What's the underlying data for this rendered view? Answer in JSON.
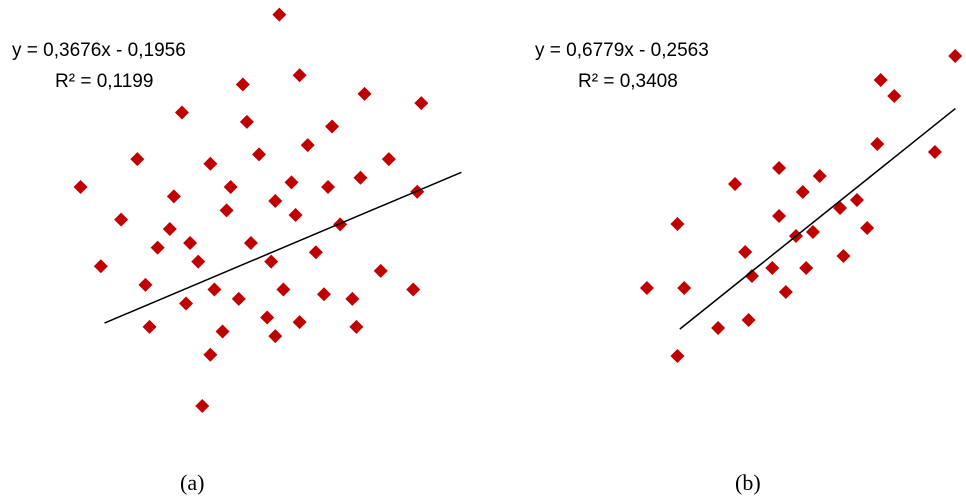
{
  "chart_data": [
    {
      "type": "scatter",
      "caption": "(a)",
      "equation": "y = 0,3676x - 0,1956",
      "r_squared": "R² = 0,1199",
      "trendline": {
        "slope": 0.3676,
        "intercept": -0.1956
      },
      "xlim": [
        -2.6,
        2.7
      ],
      "ylim": [
        -1.9,
        2.5
      ],
      "marker_color": "#c00000",
      "marker_shape": "diamond",
      "line_color": "#000000",
      "grid": false,
      "axes_visible": false,
      "points": [
        [
          -1.85,
          -0.25
        ],
        [
          -1.25,
          -0.9
        ],
        [
          -0.5,
          -1.2
        ],
        [
          0.3,
          -1.0
        ],
        [
          1.3,
          -0.9
        ],
        [
          2.0,
          -0.5
        ],
        [
          -1.4,
          0.9
        ],
        [
          -0.85,
          1.4
        ],
        [
          -0.1,
          1.7
        ],
        [
          0.6,
          1.8
        ],
        [
          1.4,
          1.6
        ],
        [
          2.1,
          1.5
        ],
        [
          0.35,
          2.45
        ],
        [
          -2.1,
          0.6
        ],
        [
          2.05,
          0.55
        ],
        [
          -0.6,
          -1.75
        ],
        [
          0.9,
          -0.55
        ],
        [
          -0.95,
          0.5
        ],
        [
          0.0,
          0.0
        ],
        [
          -0.3,
          0.35
        ],
        [
          0.25,
          -0.2
        ],
        [
          -0.65,
          -0.2
        ],
        [
          0.55,
          0.3
        ],
        [
          0.95,
          0.6
        ],
        [
          -0.15,
          -0.6
        ],
        [
          0.4,
          -0.5
        ],
        [
          -0.5,
          0.85
        ],
        [
          0.7,
          1.05
        ],
        [
          1.1,
          0.2
        ],
        [
          -0.8,
          -0.65
        ],
        [
          -1.15,
          -0.05
        ],
        [
          1.35,
          0.7
        ],
        [
          -0.35,
          -0.95
        ],
        [
          0.1,
          0.95
        ],
        [
          0.8,
          -0.1
        ],
        [
          -1.0,
          0.15
        ],
        [
          0.5,
          0.65
        ],
        [
          1.6,
          -0.3
        ],
        [
          -1.6,
          0.25
        ],
        [
          0.2,
          -0.8
        ],
        [
          -0.25,
          0.6
        ],
        [
          0.6,
          -0.85
        ],
        [
          -0.45,
          -0.5
        ],
        [
          1.0,
          1.25
        ],
        [
          -1.3,
          -0.45
        ],
        [
          1.7,
          0.9
        ],
        [
          -0.05,
          1.3
        ],
        [
          0.3,
          0.45
        ],
        [
          -0.75,
          0.0
        ],
        [
          1.25,
          -0.6
        ]
      ]
    },
    {
      "type": "scatter",
      "caption": "(b)",
      "equation": "y = 0,6779x - 0,2563",
      "r_squared": "R² = 0,3408",
      "trendline": {
        "slope": 0.6779,
        "intercept": -0.2563
      },
      "xlim": [
        -2.0,
        2.9
      ],
      "ylim": [
        -2.0,
        2.5
      ],
      "marker_color": "#c00000",
      "marker_shape": "diamond",
      "line_color": "#000000",
      "grid": false,
      "axes_visible": false,
      "points": [
        [
          2.8,
          2.3
        ],
        [
          1.7,
          2.0
        ],
        [
          2.5,
          1.1
        ],
        [
          1.9,
          1.8
        ],
        [
          1.65,
          1.2
        ],
        [
          0.8,
          0.8
        ],
        [
          0.55,
          0.6
        ],
        [
          0.2,
          0.3
        ],
        [
          -0.3,
          -0.15
        ],
        [
          -1.3,
          0.2
        ],
        [
          -0.45,
          0.7
        ],
        [
          -1.75,
          -0.6
        ],
        [
          -1.3,
          -1.45
        ],
        [
          -0.7,
          -1.1
        ],
        [
          -0.25,
          -1.0
        ],
        [
          0.3,
          -0.65
        ],
        [
          0.6,
          -0.35
        ],
        [
          0.1,
          -0.35
        ],
        [
          1.15,
          -0.2
        ],
        [
          1.5,
          0.15
        ],
        [
          -0.2,
          -0.45
        ],
        [
          0.45,
          0.05
        ],
        [
          1.1,
          0.4
        ],
        [
          0.7,
          0.1
        ],
        [
          -1.2,
          -0.6
        ],
        [
          0.2,
          0.9
        ],
        [
          1.35,
          0.5
        ]
      ]
    }
  ]
}
